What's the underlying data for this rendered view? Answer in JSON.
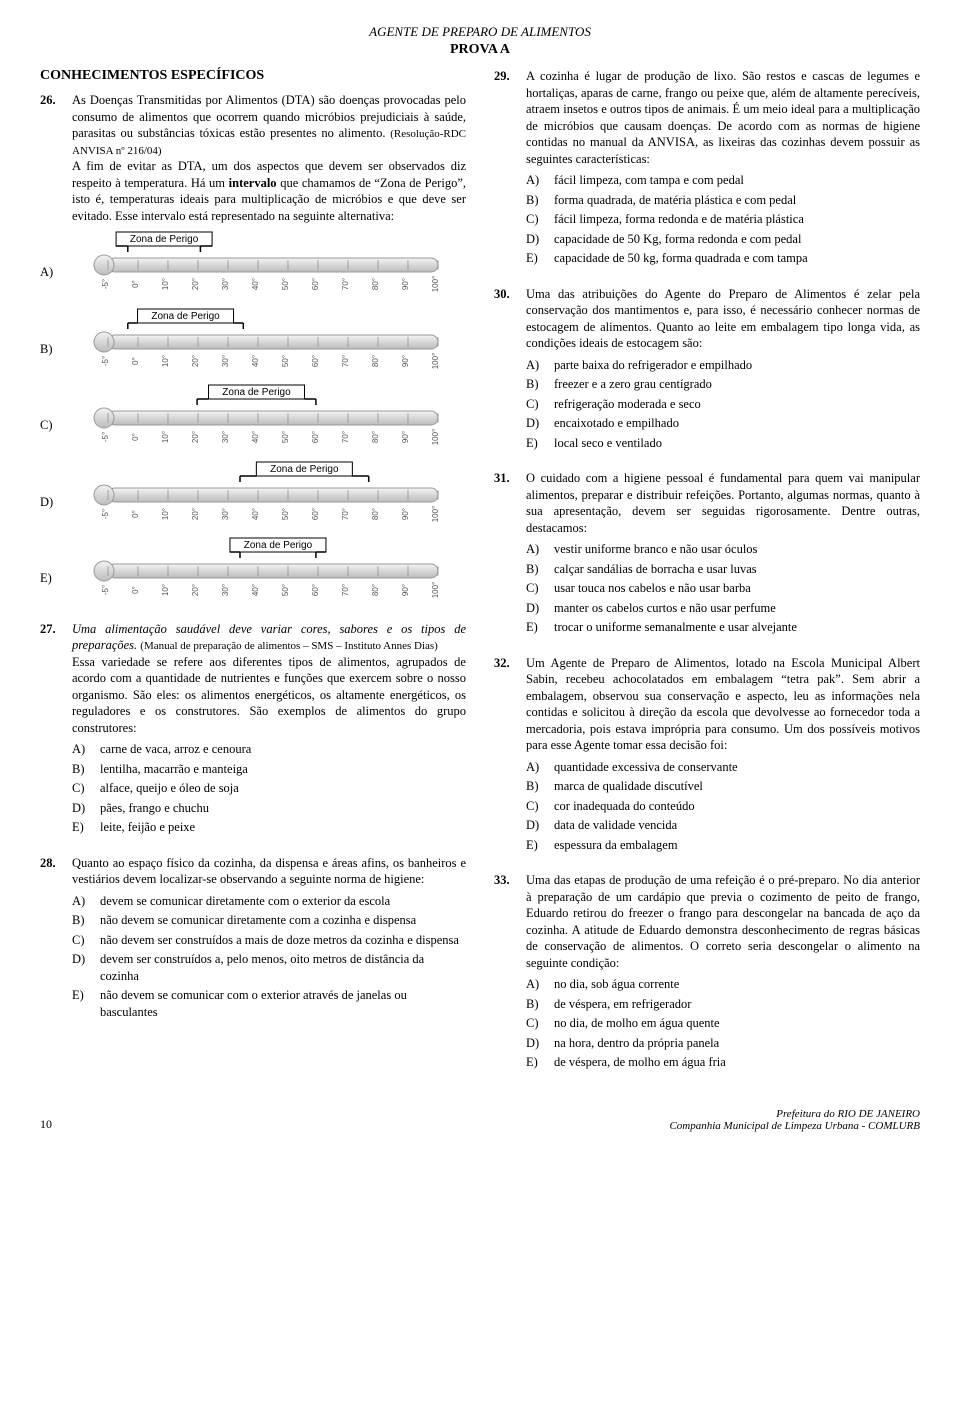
{
  "doc_header": "AGENTE DE PREPARO DE ALIMENTOS",
  "prova": "PROVA A",
  "section_title": "CONHECIMENTOS ESPECÍFICOS",
  "thermo": {
    "zona_label": "Zona de Perigo",
    "ticks": [
      "-5°",
      "0°",
      "10°",
      "20°",
      "30°",
      "40°",
      "50°",
      "60°",
      "70°",
      "80°",
      "90°",
      "100°"
    ],
    "zones": {
      "A": {
        "start": 0.06,
        "end": 0.28
      },
      "B": {
        "start": 0.06,
        "end": 0.41
      },
      "C": {
        "start": 0.27,
        "end": 0.63
      },
      "D": {
        "start": 0.4,
        "end": 0.79
      },
      "E": {
        "start": 0.4,
        "end": 0.63
      }
    },
    "colors": {
      "tube_fill": "#d7d7d7",
      "tube_stroke": "#999999",
      "bulb_fill": "#cfcfcf",
      "scale_stroke": "#888888",
      "zona_box_stroke": "#000000",
      "zona_box_fill": "#ffffff",
      "tick_text": "#555555"
    }
  },
  "q26": {
    "num": "26.",
    "text1": "As Doenças Transmitidas por Alimentos (DTA) são doenças provocadas pelo consumo de alimentos que ocorrem quando micróbios prejudiciais à saúde, parasitas ou substâncias tóxicas estão presentes no alimento.",
    "cite": "(Resolução-RDC ANVISA nº 216/04)",
    "text2": "A fim de evitar as DTA, um dos aspectos que devem ser observados diz respeito à temperatura. Há um ",
    "bold": "intervalo",
    "text3": " que chamamos de “Zona de Perigo”, isto é, temperaturas ideais para multiplicação de micróbios e que deve ser evitado. Esse intervalo está representado na seguinte alternativa:"
  },
  "q27": {
    "num": "27.",
    "ital": "Uma alimentação saudável deve variar cores, sabores e os tipos de preparações.",
    "cite": "(Manual de preparação de alimentos – SMS – Instituto Annes Dias)",
    "text": "Essa variedade se refere aos diferentes tipos de alimentos, agrupados de acordo com a quantidade de nutrientes e funções que exercem sobre o nosso organismo. São eles: os alimentos energéticos, os altamente energéticos, os reguladores e os construtores. São exemplos de alimentos do grupo construtores:",
    "opts": {
      "A": "carne de vaca, arroz e cenoura",
      "B": "lentilha, macarrão e manteiga",
      "C": "alface, queijo e óleo de soja",
      "D": "pães, frango e chuchu",
      "E": "leite, feijão e peixe"
    }
  },
  "q28": {
    "num": "28.",
    "text": "Quanto ao espaço físico da cozinha, da dispensa e áreas afins, os banheiros e vestiários devem localizar-se observando a seguinte norma de higiene:",
    "opts": {
      "A": "devem se comunicar diretamente com o exterior da escola",
      "B": "não devem se comunicar diretamente com a cozinha e dispensa",
      "C": "não devem ser construídos a mais de doze metros da cozinha e dispensa",
      "D": "devem ser construídos a, pelo menos, oito metros de distância da cozinha",
      "E": "não devem se comunicar com o exterior através de janelas ou basculantes"
    }
  },
  "q29": {
    "num": "29.",
    "text": "A cozinha é lugar de produção de lixo. São restos e cascas de legumes e hortaliças, aparas de carne, frango ou peixe que, além de altamente perecíveis, atraem insetos e outros tipos de animais. É um meio ideal para a multiplicação de micróbios que causam doenças. De acordo com as normas de higiene contidas no manual da ANVISA, as lixeiras das cozinhas devem possuir as seguintes características:",
    "opts": {
      "A": "fácil limpeza, com tampa e com pedal",
      "B": "forma quadrada, de matéria plástica e com pedal",
      "C": "fácil limpeza, forma redonda e de matéria plástica",
      "D": "capacidade de 50 Kg, forma redonda e com pedal",
      "E": "capacidade de 50 kg, forma quadrada e com tampa"
    }
  },
  "q30": {
    "num": "30.",
    "text": "Uma das atribuições do Agente do Preparo de Alimentos é zelar pela conservação dos mantimentos e, para isso, é necessário conhecer normas de estocagem de alimentos. Quanto ao leite em embalagem tipo longa vida, as condições ideais de estocagem são:",
    "opts": {
      "A": "parte baixa do refrigerador e empilhado",
      "B": "freezer e a zero grau centígrado",
      "C": "refrigeração moderada e seco",
      "D": "encaixotado e empilhado",
      "E": "local seco e ventilado"
    }
  },
  "q31": {
    "num": "31.",
    "text": "O cuidado com a higiene pessoal é fundamental para quem vai manipular alimentos, preparar e distribuir refeições. Portanto, algumas normas, quanto à sua apresentação, devem ser seguidas rigorosamente. Dentre outras, destacamos:",
    "opts": {
      "A": "vestir uniforme branco e não usar óculos",
      "B": "calçar sandálias de borracha e usar luvas",
      "C": "usar touca nos cabelos e não usar barba",
      "D": "manter os cabelos curtos e não usar perfume",
      "E": "trocar o uniforme semanalmente e usar alvejante"
    }
  },
  "q32": {
    "num": "32.",
    "text": "Um Agente de Preparo de Alimentos, lotado na Escola Municipal Albert Sabin, recebeu achocolatados em embalagem “tetra pak”. Sem abrir a embalagem, observou sua conservação e aspecto, leu as informações nela contidas e solicitou à direção da escola que devolvesse ao fornecedor toda a mercadoria, pois estava imprópria para consumo. Um dos possíveis motivos para esse Agente tomar essa decisão foi:",
    "opts": {
      "A": "quantidade excessiva de conservante",
      "B": "marca de qualidade discutível",
      "C": "cor inadequada do conteúdo",
      "D": "data de validade vencida",
      "E": "espessura da embalagem"
    }
  },
  "q33": {
    "num": "33.",
    "text": "Uma das etapas de produção de uma refeição é o pré-preparo. No dia anterior à preparação de um cardápio que previa o cozimento de peito de frango, Eduardo retirou do freezer o frango para descongelar na bancada de aço da cozinha. A atitude de Eduardo demonstra desconhecimento de regras básicas de conservação de alimentos. O correto seria descongelar o alimento na seguinte condição:",
    "opts": {
      "A": "no dia, sob água corrente",
      "B": "de véspera, em refrigerador",
      "C": "no dia, de molho em água quente",
      "D": "na hora, dentro da própria panela",
      "E": "de véspera, de molho em água fria"
    }
  },
  "footer": {
    "page": "10",
    "line1": "Prefeitura do RIO DE JANEIRO",
    "line2": "Companhia Municipal de Limpeza Urbana - COMLURB"
  }
}
